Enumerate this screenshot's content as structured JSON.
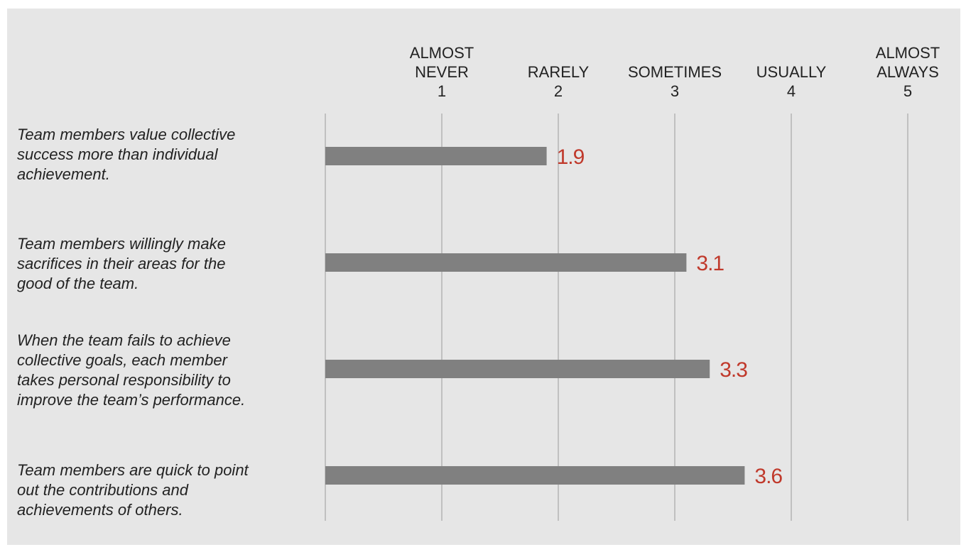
{
  "chart_data": {
    "type": "bar",
    "orientation": "horizontal",
    "scale": [
      {
        "value": 1,
        "lines": [
          "ALMOST",
          "NEVER",
          "1"
        ]
      },
      {
        "value": 2,
        "lines": [
          "RARELY",
          "2"
        ]
      },
      {
        "value": 3,
        "lines": [
          "SOMETIMES",
          "3"
        ]
      },
      {
        "value": 4,
        "lines": [
          "USUALLY",
          "4"
        ]
      },
      {
        "value": 5,
        "lines": [
          "ALMOST",
          "ALWAYS",
          "5"
        ]
      }
    ],
    "xlim": [
      0,
      5
    ],
    "grid": true,
    "categories": [
      "Team members value collective success more than individual achievement.",
      "Team members willingly make sacrifices in their areas for the good of the team.",
      "When the team fails to achieve collective goals, each member takes personal responsibility to improve the team’s performance.",
      "Team members are quick to point out the contributions and achievements of others."
    ],
    "label_lines": [
      [
        "Team members value collective",
        "success more than individual",
        "achievement."
      ],
      [
        "Team members willingly make",
        "sacrifices in their areas for the",
        "good of the team."
      ],
      [
        "When the team fails to achieve",
        "collective goals, each member",
        "takes personal responsibility to",
        "improve the team’s performance."
      ],
      [
        "Team members are quick to point",
        "out the contributions and",
        "achievements of others."
      ]
    ],
    "values": [
      1.9,
      3.1,
      3.3,
      3.6
    ],
    "value_labels": [
      "1.9",
      "3.1",
      "3.3",
      "3.6"
    ]
  },
  "colors": {
    "background": "#e6e6e6",
    "bar": "#808080",
    "gridline": "#b3b3b3",
    "value_text": "#c0392b",
    "text": "#222222"
  }
}
